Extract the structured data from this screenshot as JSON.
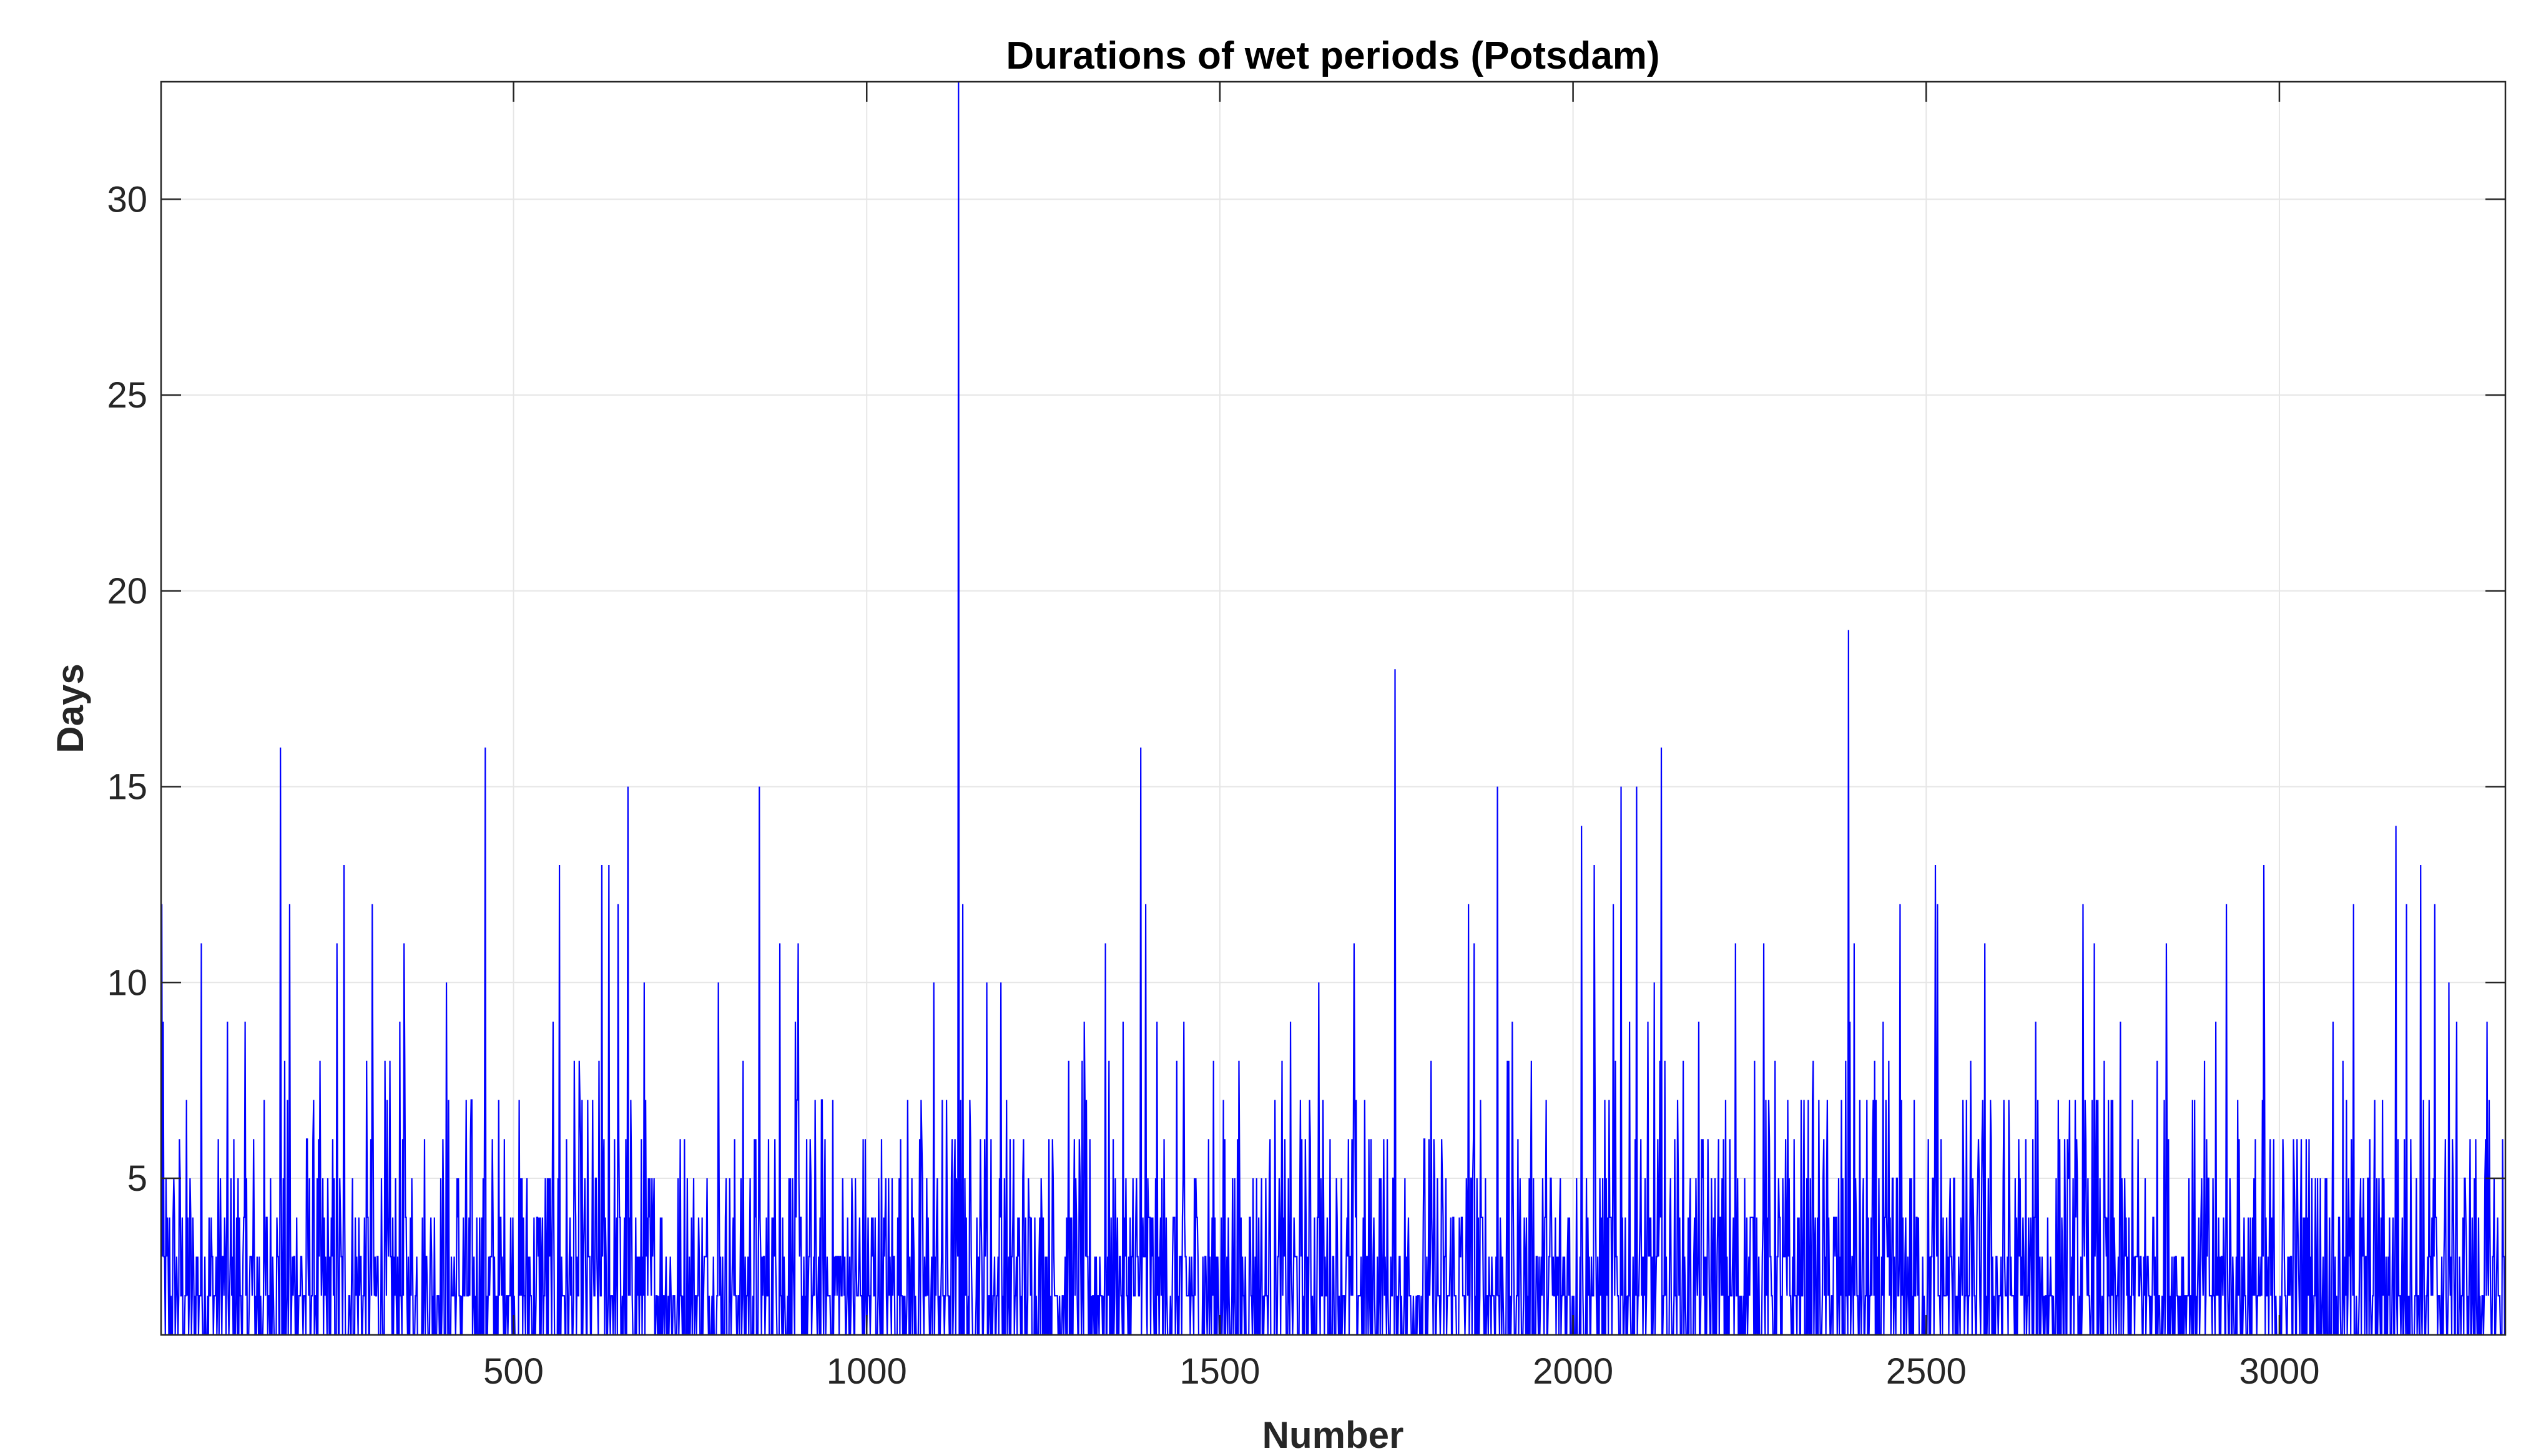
{
  "chart_data": {
    "type": "line",
    "title": "Durations of wet periods (Potsdam)",
    "xlabel": "Number",
    "ylabel": "Days",
    "xlim": [
      1,
      3320
    ],
    "ylim": [
      1,
      33
    ],
    "xticks": [
      500,
      1000,
      1500,
      2000,
      2500,
      3000
    ],
    "yticks": [
      5,
      10,
      15,
      20,
      25,
      30
    ],
    "xtick_labels": [
      "500",
      "1000",
      "1500",
      "2000",
      "2500",
      "3000"
    ],
    "ytick_labels": [
      "5",
      "10",
      "15",
      "20",
      "25",
      "30"
    ],
    "grid": true,
    "line_color": "#0000ff",
    "n_points": 3320,
    "notable_peaks": [
      {
        "x": 2,
        "y": 12
      },
      {
        "x": 58,
        "y": 11
      },
      {
        "x": 170,
        "y": 16
      },
      {
        "x": 183,
        "y": 12
      },
      {
        "x": 250,
        "y": 11
      },
      {
        "x": 260,
        "y": 13
      },
      {
        "x": 300,
        "y": 12
      },
      {
        "x": 345,
        "y": 11
      },
      {
        "x": 405,
        "y": 10
      },
      {
        "x": 460,
        "y": 16
      },
      {
        "x": 565,
        "y": 13
      },
      {
        "x": 625,
        "y": 13
      },
      {
        "x": 635,
        "y": 13
      },
      {
        "x": 648,
        "y": 12
      },
      {
        "x": 662,
        "y": 15
      },
      {
        "x": 685,
        "y": 10
      },
      {
        "x": 790,
        "y": 10
      },
      {
        "x": 848,
        "y": 15
      },
      {
        "x": 877,
        "y": 11
      },
      {
        "x": 903,
        "y": 11
      },
      {
        "x": 1095,
        "y": 10
      },
      {
        "x": 1130,
        "y": 33
      },
      {
        "x": 1136,
        "y": 12
      },
      {
        "x": 1170,
        "y": 10
      },
      {
        "x": 1190,
        "y": 10
      },
      {
        "x": 1338,
        "y": 11
      },
      {
        "x": 1388,
        "y": 16
      },
      {
        "x": 1395,
        "y": 12
      },
      {
        "x": 1640,
        "y": 10
      },
      {
        "x": 1690,
        "y": 11
      },
      {
        "x": 1748,
        "y": 18
      },
      {
        "x": 1852,
        "y": 12
      },
      {
        "x": 1860,
        "y": 11
      },
      {
        "x": 1893,
        "y": 15
      },
      {
        "x": 2012,
        "y": 14
      },
      {
        "x": 2030,
        "y": 13
      },
      {
        "x": 2057,
        "y": 12
      },
      {
        "x": 2068,
        "y": 15
      },
      {
        "x": 2090,
        "y": 15
      },
      {
        "x": 2115,
        "y": 10
      },
      {
        "x": 2125,
        "y": 16
      },
      {
        "x": 2230,
        "y": 11
      },
      {
        "x": 2270,
        "y": 11
      },
      {
        "x": 2390,
        "y": 19
      },
      {
        "x": 2398,
        "y": 11
      },
      {
        "x": 2463,
        "y": 12
      },
      {
        "x": 2513,
        "y": 13
      },
      {
        "x": 2516,
        "y": 12
      },
      {
        "x": 2583,
        "y": 11
      },
      {
        "x": 2722,
        "y": 12
      },
      {
        "x": 2738,
        "y": 11
      },
      {
        "x": 2840,
        "y": 11
      },
      {
        "x": 2925,
        "y": 12
      },
      {
        "x": 2978,
        "y": 13
      },
      {
        "x": 3105,
        "y": 12
      },
      {
        "x": 3165,
        "y": 14
      },
      {
        "x": 3180,
        "y": 12
      },
      {
        "x": 3200,
        "y": 13
      },
      {
        "x": 3220,
        "y": 12
      },
      {
        "x": 3240,
        "y": 10
      }
    ]
  }
}
